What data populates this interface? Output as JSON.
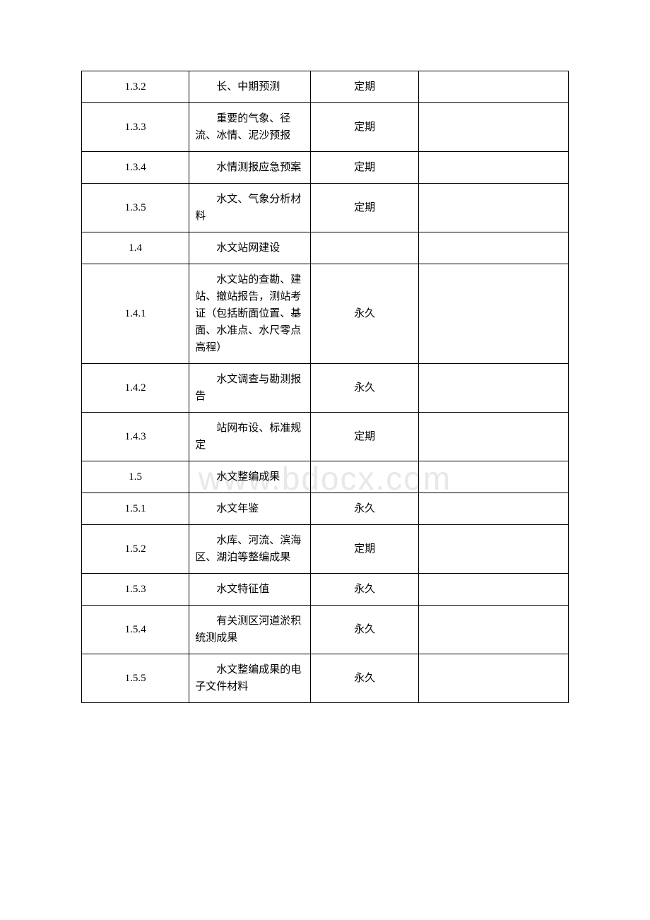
{
  "watermark": "www.bdocx.com",
  "table": {
    "columns": {
      "id_width": 152,
      "desc_width": 172,
      "period_width": 152,
      "note_width": 212
    },
    "border_color": "#000000",
    "background_color": "#ffffff",
    "text_color": "#000000",
    "font_size": 15,
    "rows": [
      {
        "id": "1.3.2",
        "desc": "长、中期预测",
        "period": "定期",
        "note": ""
      },
      {
        "id": "1.3.3",
        "desc": "重要的气象、径流、冰情、泥沙预报",
        "period": "定期",
        "note": ""
      },
      {
        "id": "1.3.4",
        "desc": "水情测报应急预案",
        "period": "定期",
        "note": ""
      },
      {
        "id": "1.3.5",
        "desc": "水文、气象分析材料",
        "period": "定期",
        "note": ""
      },
      {
        "id": "1.4",
        "desc": "水文站网建设",
        "period": "",
        "note": ""
      },
      {
        "id": "1.4.1",
        "desc": "水文站的查勘、建站、撤站报告，测站考证（包括断面位置、基面、水准点、水尺零点高程）",
        "period": "永久",
        "note": ""
      },
      {
        "id": "1.4.2",
        "desc": "水文调查与勘测报告",
        "period": "永久",
        "note": ""
      },
      {
        "id": "1.4.3",
        "desc": "站网布设、标准规定",
        "period": "定期",
        "note": ""
      },
      {
        "id": "1.5",
        "desc": "水文整编成果",
        "period": "",
        "note": ""
      },
      {
        "id": "1.5.1",
        "desc": "水文年鉴",
        "period": "永久",
        "note": ""
      },
      {
        "id": "1.5.2",
        "desc": "水库、河流、滨海区、湖泊等整编成果",
        "period": "定期",
        "note": ""
      },
      {
        "id": "1.5.3",
        "desc": "水文特征值",
        "period": "永久",
        "note": ""
      },
      {
        "id": "1.5.4",
        "desc": "有关测区河道淤积统测成果",
        "period": "永久",
        "note": ""
      },
      {
        "id": "1.5.5",
        "desc": "水文整编成果的电子文件材料",
        "period": "永久",
        "note": ""
      }
    ]
  }
}
